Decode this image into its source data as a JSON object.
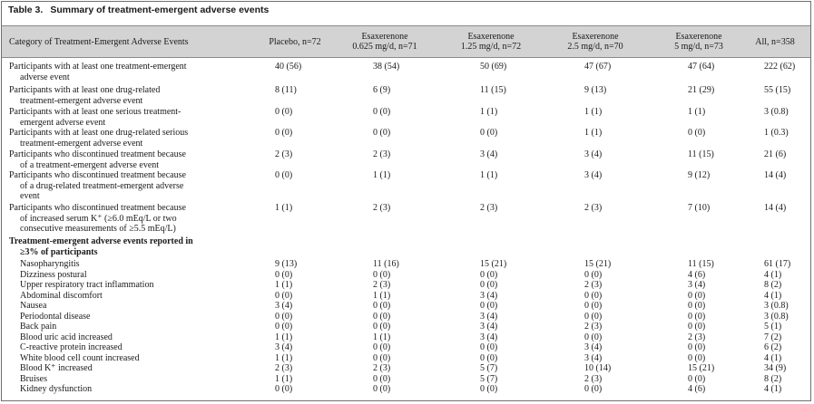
{
  "caption": {
    "number": "Table 3.",
    "title": "Summary of treatment-emergent adverse events"
  },
  "columns": [
    {
      "lines": [
        "Category of Treatment-Emergent Adverse Events"
      ]
    },
    {
      "lines": [
        "Placebo, n=72"
      ]
    },
    {
      "lines": [
        "Esaxerenone",
        "0.625 mg/d, n=71"
      ]
    },
    {
      "lines": [
        "Esaxerenone",
        "1.25 mg/d, n=72"
      ]
    },
    {
      "lines": [
        "Esaxerenone",
        "2.5 mg/d, n=70"
      ]
    },
    {
      "lines": [
        "Esaxerenone",
        "5 mg/d, n=73"
      ]
    },
    {
      "lines": [
        "All, n=358"
      ]
    }
  ],
  "summary_rows": [
    {
      "label": [
        "Participants with at least one treatment-emergent",
        "adverse event"
      ],
      "values": [
        "40 (56)",
        "38 (54)",
        "50 (69)",
        "47 (67)",
        "47 (64)",
        "222 (62)"
      ]
    },
    {
      "label": [
        "Participants with at least one drug-related",
        "treatment-emergent adverse event"
      ],
      "values": [
        "8 (11)",
        "6 (9)",
        "11 (15)",
        "9 (13)",
        "21 (29)",
        "55 (15)"
      ]
    },
    {
      "label": [
        "Participants with at least one serious treatment-",
        "emergent adverse event"
      ],
      "values": [
        "0 (0)",
        "0 (0)",
        "1 (1)",
        "1 (1)",
        "1 (1)",
        "3 (0.8)"
      ]
    },
    {
      "label": [
        "Participants with at least one drug-related serious",
        "treatment-emergent adverse event"
      ],
      "values": [
        "0 (0)",
        "0 (0)",
        "0 (0)",
        "1 (1)",
        "0 (0)",
        "1 (0.3)"
      ]
    },
    {
      "label": [
        "Participants who discontinued treatment because",
        "of a treatment-emergent adverse event"
      ],
      "values": [
        "2 (3)",
        "2 (3)",
        "3 (4)",
        "3 (4)",
        "11 (15)",
        "21 (6)"
      ]
    },
    {
      "label": [
        "Participants who discontinued treatment because",
        "of a drug-related treatment-emergent adverse",
        "event"
      ],
      "values": [
        "0 (0)",
        "1 (1)",
        "1 (1)",
        "3 (4)",
        "9 (12)",
        "14 (4)"
      ]
    },
    {
      "label": [
        "Participants who discontinued treatment because",
        "of increased serum K⁺ (≥6.0 mEq/L or two",
        "consecutive measurements of ≥5.5 mEq/L)"
      ],
      "values": [
        "1 (1)",
        "2 (3)",
        "2 (3)",
        "2 (3)",
        "7 (10)",
        "14 (4)"
      ]
    }
  ],
  "section_header": [
    "Treatment-emergent adverse events reported in",
    "≥3% of participants"
  ],
  "event_names": [
    "Nasopharyngitis",
    "Dizziness postural",
    "Upper respiratory tract inflammation",
    "Abdominal discomfort",
    "Nausea",
    "Periodontal disease",
    "Back pain",
    "Blood uric acid increased",
    "C-reactive protein increased",
    "White blood cell count increased",
    "Blood K⁺ increased",
    "Bruises",
    "Kidney dysfunction"
  ],
  "event_columns": [
    [
      "9 (13)",
      "0 (0)",
      "1 (1)",
      "0 (0)",
      "3 (4)",
      "0 (0)",
      "0 (0)",
      "1 (1)",
      "3 (4)",
      "1 (1)",
      "2 (3)",
      "1 (1)",
      "0 (0)"
    ],
    [
      "11 (16)",
      "0 (0)",
      "2 (3)",
      "1 (1)",
      "0 (0)",
      "0 (0)",
      "0 (0)",
      "1 (1)",
      "0 (0)",
      "0 (0)",
      "2 (3)",
      "0 (0)",
      "0 (0)"
    ],
    [
      "15 (21)",
      "0 (0)",
      "0 (0)",
      "3 (4)",
      "0 (0)",
      "3 (4)",
      "3 (4)",
      "3 (4)",
      "0 (0)",
      "0 (0)",
      "5 (7)",
      "5 (7)",
      "0 (0)"
    ],
    [
      "15 (21)",
      "0 (0)",
      "2 (3)",
      "0 (0)",
      "0 (0)",
      "0 (0)",
      "2 (3)",
      "0 (0)",
      "3 (4)",
      "3 (4)",
      "10 (14)",
      "2 (3)",
      "0 (0)"
    ],
    [
      "11 (15)",
      "4 (6)",
      "3 (4)",
      "0 (0)",
      "0 (0)",
      "0 (0)",
      "0 (0)",
      "2 (3)",
      "0 (0)",
      "0 (0)",
      "15 (21)",
      "0 (0)",
      "4 (6)"
    ],
    [
      "61 (17)",
      "4 (1)",
      "8 (2)",
      "4 (1)",
      "3 (0.8)",
      "3 (0.8)",
      "5 (1)",
      "7 (2)",
      "6 (2)",
      "4 (1)",
      "34 (9)",
      "8 (2)",
      "4 (1)"
    ]
  ]
}
